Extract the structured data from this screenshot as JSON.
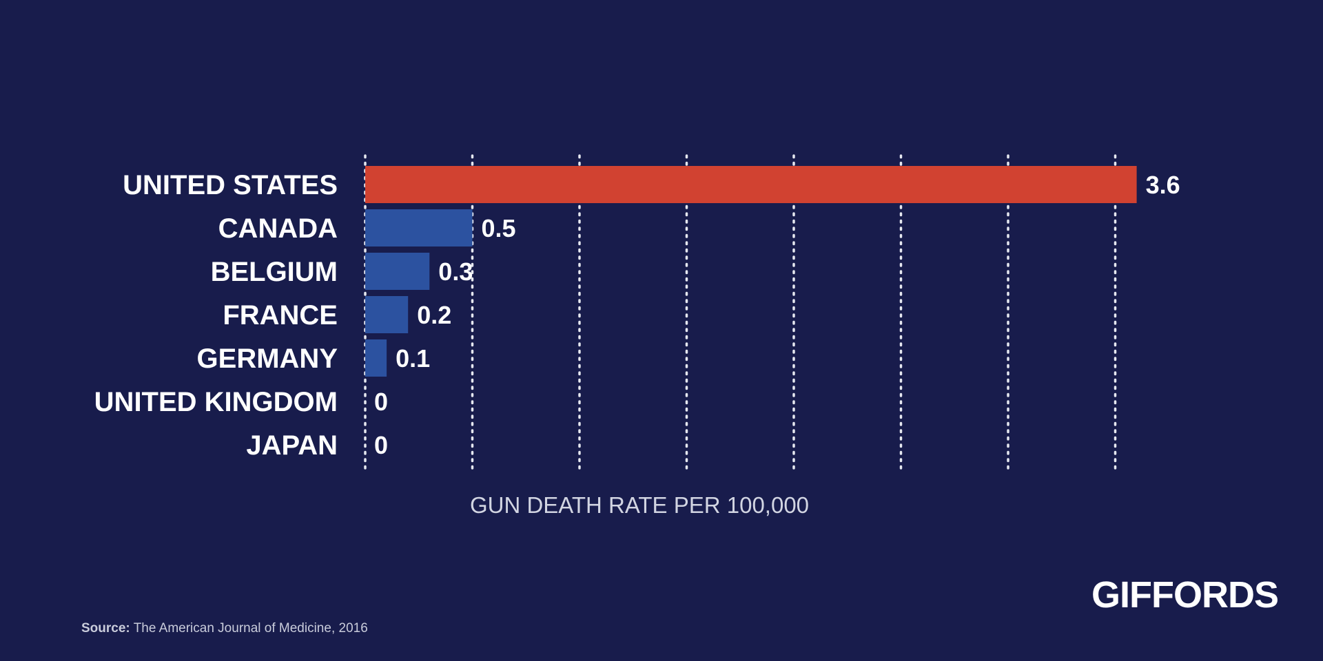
{
  "chart_data": {
    "type": "bar",
    "orientation": "horizontal",
    "categories": [
      "UNITED STATES",
      "CANADA",
      "BELGIUM",
      "FRANCE",
      "GERMANY",
      "UNITED KINGDOM",
      "JAPAN"
    ],
    "values": [
      3.6,
      0.5,
      0.3,
      0.2,
      0.1,
      0,
      0
    ],
    "value_labels": [
      "3.6",
      "0.5",
      "0.3",
      "0.2",
      "0.1",
      "0",
      "0"
    ],
    "bar_colors": [
      "#d14231",
      "#2c52a0",
      "#2c52a0",
      "#2c52a0",
      "#2c52a0",
      "#2c52a0",
      "#2c52a0"
    ],
    "xlabel": "GUN DEATH RATE PER 100,000",
    "xlim": [
      0,
      3.5
    ],
    "grid_ticks": [
      0,
      0.5,
      1.0,
      1.5,
      2.0,
      2.5,
      3.0,
      3.5
    ],
    "grid": true
  },
  "source": {
    "label": "Source:",
    "text": "The American Journal of Medicine, 2016"
  },
  "brand": {
    "name": "GIFFORDS"
  },
  "colors": {
    "background": "#181c4c",
    "highlight": "#d14231",
    "bar": "#2c52a0"
  }
}
